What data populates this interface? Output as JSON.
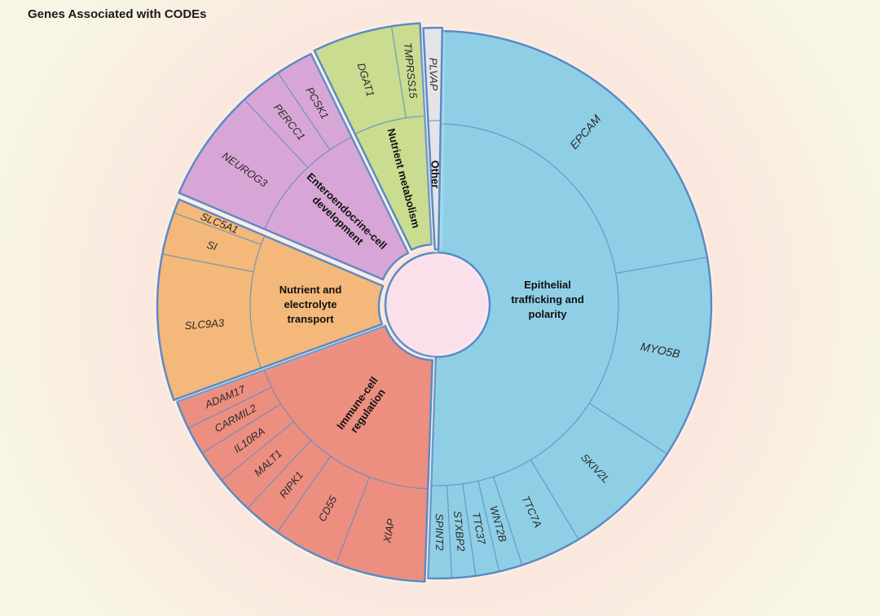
{
  "title": "Genes Associated with CODEs",
  "colors": {
    "center": "#fbe0ec",
    "border": "#5a8bc4"
  },
  "chart_data": {
    "type": "sunburst",
    "title": "Genes Associated with CODEs",
    "categories": [
      {
        "name": "Epithelial trafficking and polarity",
        "color": "#8fcfe6",
        "genes": [
          "EPCAM",
          "MYO5B",
          "SKIV2L",
          "TTC7A",
          "WNT2B",
          "TTC37",
          "STXBP2",
          "SPINT2"
        ]
      },
      {
        "name": "Immune-cell regulation",
        "color": "#ec8f80",
        "genes": [
          "XIAP",
          "CD55",
          "RIPK1",
          "MALT1",
          "IL10RA",
          "CARMIL2",
          "ADAM17"
        ]
      },
      {
        "name": "Nutrient and electrolyte transport",
        "color": "#f3b87a",
        "genes": [
          "SLC9A3",
          "SI",
          "SLC5A1"
        ]
      },
      {
        "name": "Enteroendocrine-cell development",
        "color": "#d8a6d6",
        "genes": [
          "NEUROG3",
          "PERCC1",
          "PCSK1"
        ]
      },
      {
        "name": "Nutrient metabolism",
        "color": "#c9dc90",
        "genes": [
          "DGAT1",
          "TMPRSS15"
        ]
      },
      {
        "name": "Other",
        "color": "#e4e4e8",
        "genes": [
          "PLVAP"
        ]
      }
    ]
  }
}
